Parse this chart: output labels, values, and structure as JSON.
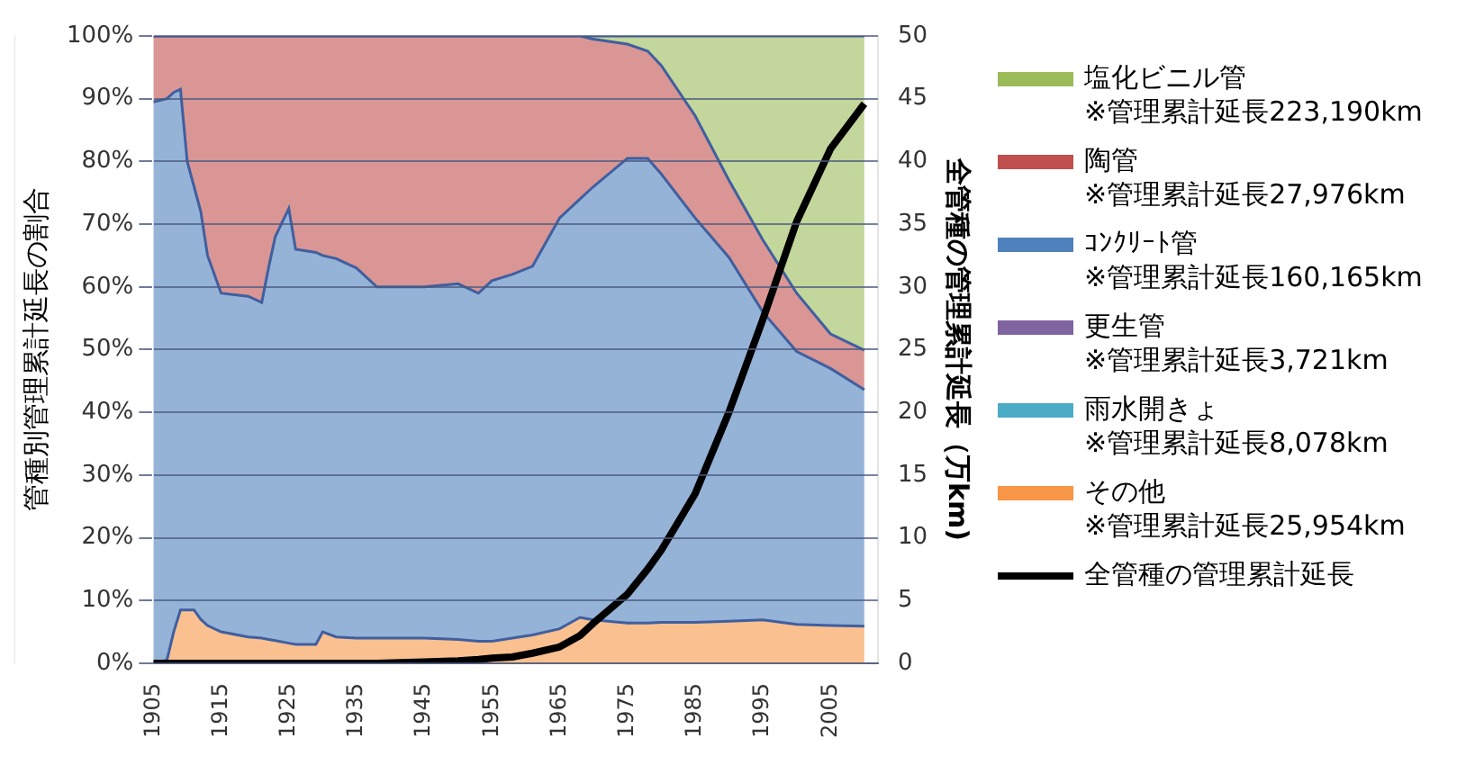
{
  "chart_data": {
    "type": "area",
    "stacked": true,
    "ylabel": "管種別管理累計延長の割合",
    "y2label": "全管種の管理累計延長（万km)",
    "x": [
      1905,
      1907,
      1908,
      1909,
      1910,
      1911,
      1912,
      1913,
      1915,
      1919,
      1921,
      1922,
      1923,
      1925,
      1926,
      1929,
      1930,
      1932,
      1935,
      1938,
      1945,
      1950,
      1953,
      1955,
      1958,
      1961,
      1965,
      1968,
      1970,
      1975,
      1978,
      1980,
      1985,
      1990,
      1995,
      2000,
      2005,
      2010
    ],
    "xlim": [
      1905,
      2012
    ],
    "xticks": [
      1905,
      1915,
      1925,
      1935,
      1945,
      1955,
      1965,
      1975,
      1985,
      1995,
      2005
    ],
    "ylim": [
      0,
      100
    ],
    "yticks": [
      {
        "value": 0,
        "label": "0%"
      },
      {
        "value": 10,
        "label": "10%"
      },
      {
        "value": 20,
        "label": "20%"
      },
      {
        "value": 30,
        "label": "30%"
      },
      {
        "value": 40,
        "label": "40%"
      },
      {
        "value": 50,
        "label": "50%"
      },
      {
        "value": 60,
        "label": "60%"
      },
      {
        "value": 70,
        "label": "70%"
      },
      {
        "value": 80,
        "label": "80%"
      },
      {
        "value": 90,
        "label": "90%"
      },
      {
        "value": 100,
        "label": "100%"
      }
    ],
    "y2lim": [
      0,
      50
    ],
    "y2ticks": [
      0,
      5,
      10,
      15,
      20,
      25,
      30,
      35,
      40,
      45,
      50
    ],
    "grid": "y",
    "legend": "right",
    "series": [
      {
        "name": "その他",
        "color": "#f79646",
        "values": [
          0,
          0.5,
          5,
          8.5,
          8.5,
          8.5,
          7,
          6,
          5,
          4.2,
          4,
          3.8,
          3.6,
          3.2,
          3,
          3,
          5,
          4.2,
          4,
          4,
          4,
          3.8,
          3.5,
          3.5,
          4,
          4.5,
          5.5,
          7.3,
          6.9,
          6.4,
          6.4,
          6.5,
          6.5,
          6.7,
          6.9,
          6.2,
          6,
          5.9
        ]
      },
      {
        "name": "雨水開きょ",
        "color": "#4bacc6",
        "values": [
          null,
          null,
          null,
          null,
          null,
          null,
          null,
          null,
          null,
          null,
          null,
          null,
          null,
          null,
          null,
          null,
          null,
          null,
          null,
          null,
          null,
          null,
          null,
          null,
          null,
          null,
          null,
          null,
          null,
          null,
          null,
          null,
          null,
          null,
          null,
          null,
          null,
          null
        ]
      },
      {
        "name": "更生管",
        "color": "#8064a2",
        "values": [
          null,
          null,
          null,
          null,
          null,
          null,
          null,
          null,
          null,
          null,
          null,
          null,
          null,
          null,
          null,
          null,
          null,
          null,
          null,
          null,
          null,
          null,
          null,
          null,
          null,
          null,
          null,
          null,
          null,
          null,
          null,
          null,
          null,
          null,
          null,
          null,
          null,
          null
        ]
      },
      {
        "name": "ｺﾝｸﾘｰﾄ管",
        "color": "#4f81bd",
        "values": [
          89.5,
          89.5,
          86,
          83,
          71.5,
          67.5,
          65,
          59,
          54,
          54.3,
          53.5,
          59.2,
          64.4,
          69.3,
          63,
          62.5,
          60,
          60.3,
          59,
          56,
          56,
          56.7,
          55.5,
          57.5,
          58,
          58.8,
          65.5,
          66.7,
          69.1,
          74.1,
          74.1,
          71.5,
          64.5,
          58,
          49.1,
          43.5,
          41,
          37.7
        ]
      },
      {
        "name": "陶管",
        "color": "#c0504d",
        "values": [
          10.5,
          10,
          9,
          8.5,
          20,
          24,
          28,
          35,
          41,
          41.5,
          42.5,
          37,
          32,
          27.5,
          34,
          34.5,
          35,
          35.5,
          37,
          40,
          40,
          39.5,
          41,
          39,
          38,
          36.7,
          29,
          26,
          23.5,
          18.2,
          17.1,
          17.3,
          16.3,
          12.3,
          11.5,
          9.3,
          5.5,
          6.3
        ]
      },
      {
        "name": "塩化ビニル管",
        "color": "#9bbb59",
        "values": [
          0,
          0,
          0,
          0,
          0,
          0,
          0,
          0,
          0,
          0,
          0,
          0,
          0,
          0,
          0,
          0,
          0,
          0,
          0,
          0,
          0,
          0,
          0,
          0,
          0,
          0,
          0,
          0,
          0.5,
          1.3,
          2.4,
          4.7,
          12.7,
          23,
          32.5,
          41,
          47.5,
          50.1
        ]
      },
      {
        "name": "全管種の管理累計延長",
        "type": "line",
        "axis": "y2",
        "color": "#000000",
        "values": [
          0,
          0,
          0,
          0,
          0,
          0,
          0,
          0,
          0,
          0,
          0,
          0,
          0,
          0,
          0,
          0,
          0,
          0,
          0,
          0,
          0.1,
          0.2,
          0.3,
          0.4,
          0.5,
          0.8,
          1.3,
          2.2,
          3.2,
          5.5,
          7.5,
          9,
          13.5,
          20,
          27.4,
          35.2,
          41,
          44.6
        ]
      }
    ],
    "annotations": [
      "※管理累計延長25,954km",
      "※管理累計延長8,078km",
      "※管理累計延長3,721km",
      "※管理累計延長160,165km",
      "※管理累計延長27,976km",
      "※管理累計延長223,190km"
    ]
  }
}
